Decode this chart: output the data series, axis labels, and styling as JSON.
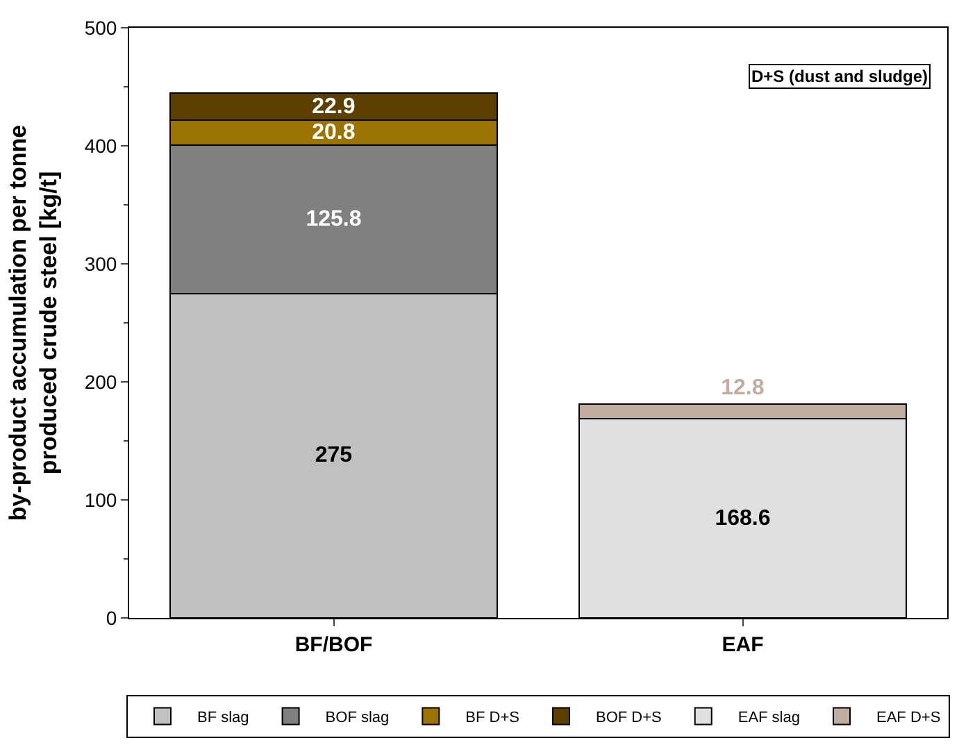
{
  "chart_data": {
    "type": "bar",
    "stacked": true,
    "data_labels": true,
    "ylabel": "by-product accumulation per tonne produced crude steel [kg/t]",
    "categories": [
      "BF/BOF",
      "EAF"
    ],
    "ylim": [
      0,
      500
    ],
    "yticks": [
      0,
      100,
      200,
      300,
      400,
      500
    ],
    "legend": "bottom",
    "annotations": [
      "D+S (dust and sludge)"
    ],
    "series": [
      {
        "name": "BF slag",
        "color": "#c0c0c0",
        "values": [
          275,
          null
        ]
      },
      {
        "name": "BOF slag",
        "color": "#808080",
        "values": [
          125.8,
          null
        ]
      },
      {
        "name": "BF D+S",
        "color": "#9c7300",
        "values": [
          20.8,
          null
        ]
      },
      {
        "name": "BOF D+S",
        "color": "#5c4000",
        "values": [
          22.9,
          null
        ]
      },
      {
        "name": "EAF slag",
        "color": "#e0e0e0",
        "values": [
          null,
          168.6
        ]
      },
      {
        "name": "EAF D+S",
        "color": "#c0ada0",
        "values": [
          null,
          12.8
        ]
      }
    ]
  }
}
